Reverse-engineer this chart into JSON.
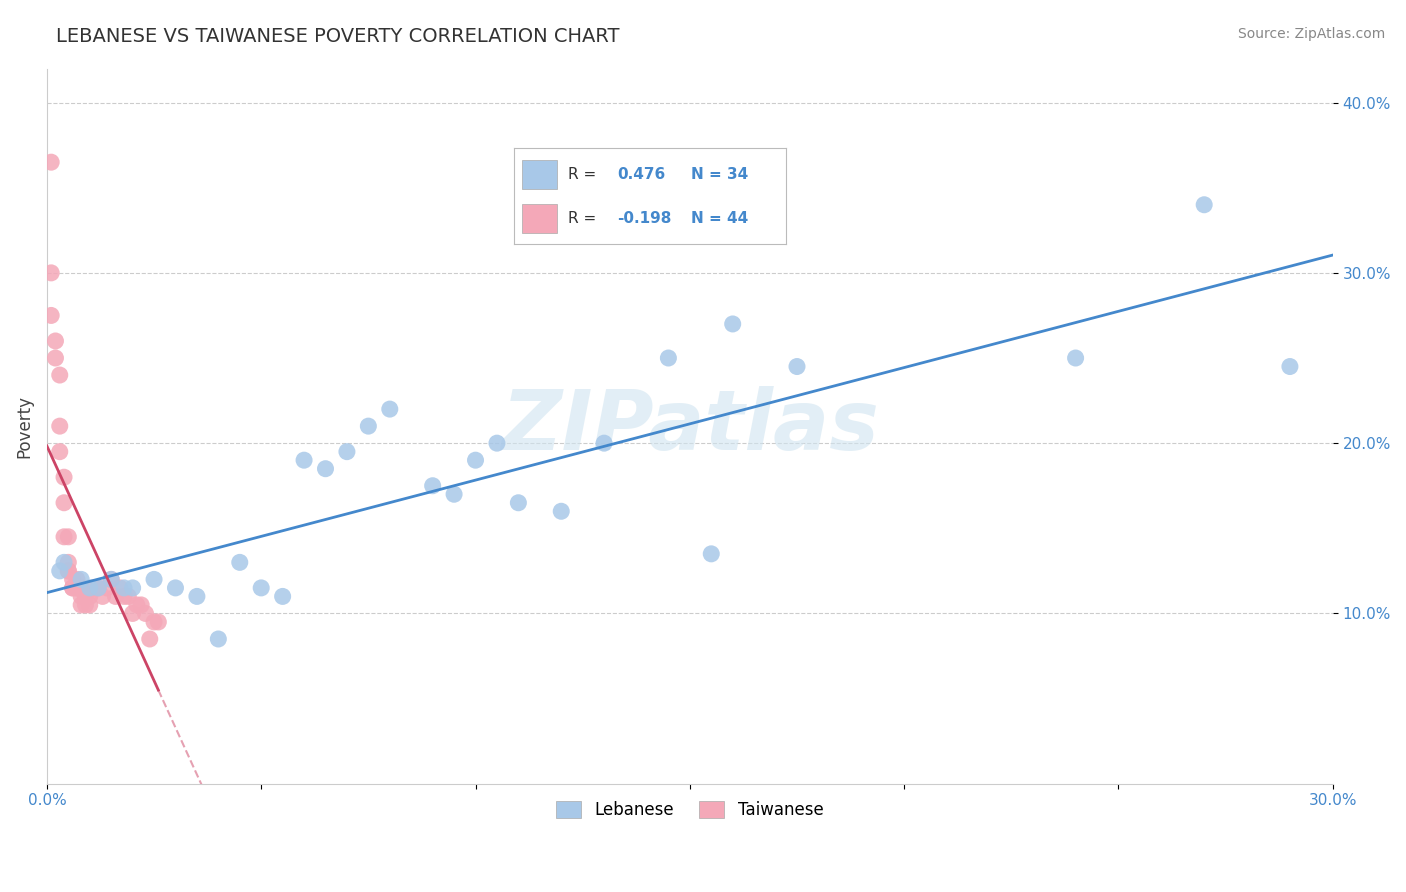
{
  "title": "LEBANESE VS TAIWANESE POVERTY CORRELATION CHART",
  "source": "Source: ZipAtlas.com",
  "ylabel": "Poverty",
  "xlim": [
    0.0,
    0.3
  ],
  "ylim": [
    0.0,
    0.42
  ],
  "xticks": [
    0.0,
    0.05,
    0.1,
    0.15,
    0.2,
    0.25,
    0.3
  ],
  "yticks": [
    0.1,
    0.2,
    0.3,
    0.4
  ],
  "blue_color": "#a8c8e8",
  "pink_color": "#f4a8b8",
  "blue_line_color": "#4488cc",
  "pink_line_color": "#cc4466",
  "watermark_text": "ZIPatlas",
  "watermark_color": "#d0e4f0",
  "background_color": "#ffffff",
  "grid_color": "#cccccc",
  "title_color": "#333333",
  "tick_color": "#4488cc",
  "lebanese_x": [
    0.003,
    0.004,
    0.008,
    0.01,
    0.012,
    0.015,
    0.018,
    0.02,
    0.025,
    0.03,
    0.035,
    0.04,
    0.045,
    0.05,
    0.055,
    0.06,
    0.065,
    0.07,
    0.075,
    0.08,
    0.09,
    0.095,
    0.1,
    0.105,
    0.11,
    0.12,
    0.13,
    0.145,
    0.155,
    0.16,
    0.175,
    0.24,
    0.27,
    0.29
  ],
  "lebanese_y": [
    0.125,
    0.13,
    0.12,
    0.115,
    0.115,
    0.12,
    0.115,
    0.115,
    0.12,
    0.115,
    0.11,
    0.085,
    0.13,
    0.115,
    0.11,
    0.19,
    0.185,
    0.195,
    0.21,
    0.22,
    0.175,
    0.17,
    0.19,
    0.2,
    0.165,
    0.16,
    0.2,
    0.25,
    0.135,
    0.27,
    0.245,
    0.25,
    0.34,
    0.245
  ],
  "taiwanese_x": [
    0.001,
    0.001,
    0.001,
    0.002,
    0.002,
    0.003,
    0.003,
    0.003,
    0.004,
    0.004,
    0.004,
    0.005,
    0.005,
    0.005,
    0.005,
    0.006,
    0.006,
    0.006,
    0.007,
    0.007,
    0.007,
    0.008,
    0.008,
    0.008,
    0.009,
    0.009,
    0.01,
    0.01,
    0.011,
    0.012,
    0.013,
    0.014,
    0.015,
    0.016,
    0.017,
    0.018,
    0.019,
    0.02,
    0.021,
    0.022,
    0.023,
    0.024,
    0.025,
    0.026
  ],
  "taiwanese_y": [
    0.365,
    0.3,
    0.275,
    0.26,
    0.25,
    0.24,
    0.21,
    0.195,
    0.18,
    0.165,
    0.145,
    0.145,
    0.13,
    0.125,
    0.125,
    0.12,
    0.115,
    0.115,
    0.12,
    0.115,
    0.115,
    0.115,
    0.11,
    0.105,
    0.11,
    0.105,
    0.11,
    0.105,
    0.115,
    0.115,
    0.11,
    0.115,
    0.12,
    0.11,
    0.115,
    0.11,
    0.11,
    0.1,
    0.105,
    0.105,
    0.1,
    0.085,
    0.095,
    0.095
  ]
}
